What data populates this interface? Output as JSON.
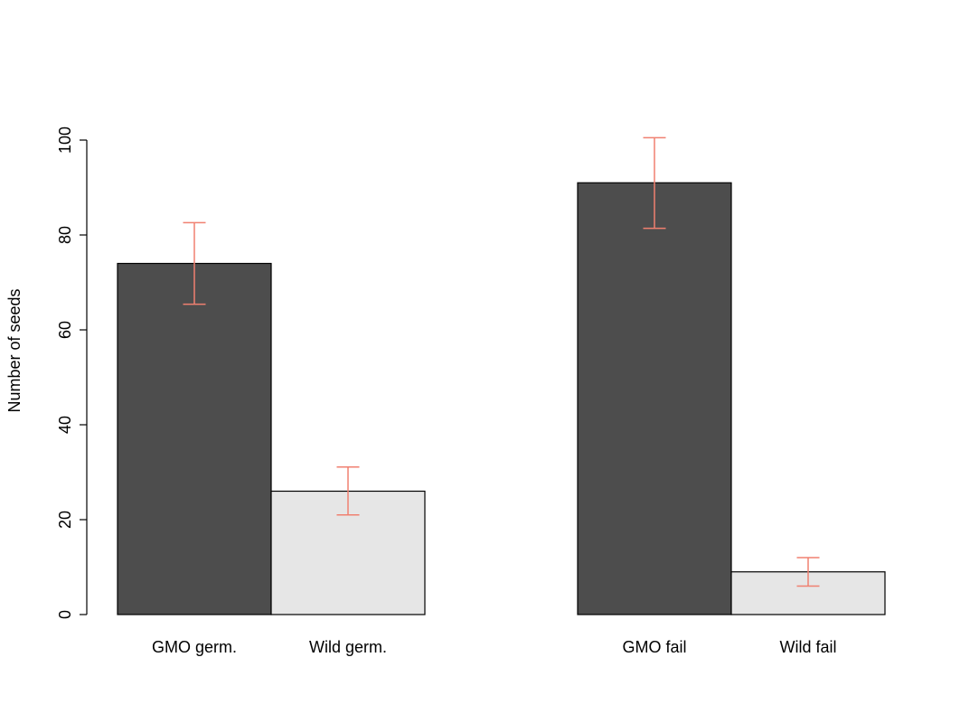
{
  "chart_data": {
    "type": "bar",
    "title": "",
    "xlabel": "",
    "ylabel": "Number of seeds",
    "ylim": [
      0,
      100
    ],
    "yticks": [
      0,
      20,
      40,
      60,
      80,
      100
    ],
    "grid": false,
    "legend": "none",
    "groups": [
      {
        "bars": [
          {
            "label": "GMO germ.",
            "value": 74,
            "err_low": 65.4,
            "err_high": 82.6,
            "color": "#4d4d4d"
          },
          {
            "label": "Wild germ.",
            "value": 26,
            "err_low": 21.0,
            "err_high": 31.1,
            "color": "#e6e6e6"
          }
        ]
      },
      {
        "bars": [
          {
            "label": "GMO fail",
            "value": 91,
            "err_low": 81.4,
            "err_high": 100.5,
            "color": "#4d4d4d"
          },
          {
            "label": "Wild fail",
            "value": 9,
            "err_low": 6.0,
            "err_high": 12.0,
            "color": "#e6e6e6"
          }
        ]
      }
    ],
    "error_bar_color": "#f08070"
  }
}
